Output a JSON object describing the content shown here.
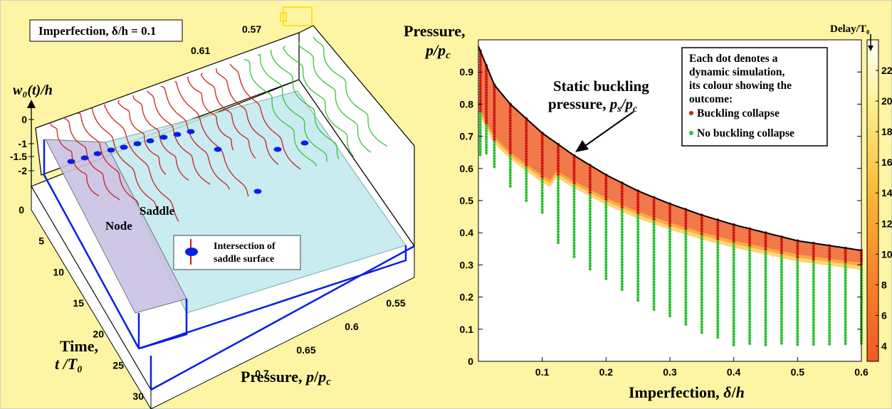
{
  "colors": {
    "background": "#fdf5a3",
    "buckling_collapse": "#cc1a14",
    "no_buckling_collapse": "#33c033",
    "saddle_surface": "#bfe9ee",
    "node_surface": "#c9c2e3",
    "static_curve": "#000000",
    "intersection_marker": "#0a1ee6",
    "box_edges": "#0a1ee6"
  },
  "chart_data": [
    {
      "type": "line",
      "panel": "left",
      "annotation_box": "Imperfection, δ/h = 0.1",
      "zlabel": "w₀(t)/h",
      "xlabel": "Pressure, p/p_c",
      "ylabel": "Time, t /T₀",
      "x_ticks": [
        "0.55",
        "0.6",
        "0.65",
        "0.7"
      ],
      "y_ticks": [
        "0",
        "5",
        "10",
        "15",
        "20",
        "25",
        "30"
      ],
      "z_ticks": [
        "0",
        "-1",
        "-1.5",
        "-2"
      ],
      "xlim": [
        0.72,
        0.54
      ],
      "ylim": [
        0,
        30
      ],
      "zlim": [
        -2,
        0
      ],
      "pressure_labels": [
        "0.61",
        "0.57"
      ],
      "region_labels": [
        "Node",
        "Saddle"
      ],
      "legend": {
        "marker_label_line1": "Intersection of",
        "marker_label_line2": "saddle surface"
      },
      "series": [
        {
          "name": "Buckling collapse",
          "pressures": [
            0.7,
            0.69,
            0.68,
            0.67,
            0.66,
            0.65,
            0.64,
            0.63,
            0.62,
            0.61,
            0.6,
            0.59,
            0.58,
            0.57
          ]
        },
        {
          "name": "No buckling collapse",
          "pressures": [
            0.56,
            0.555,
            0.55,
            0.545,
            0.54,
            0.535
          ]
        }
      ]
    },
    {
      "type": "scatter",
      "panel": "right",
      "xlabel": "Imperfection, δ/h",
      "ylabel": "Pressure,",
      "ylabel2": "p/p_c",
      "xlim": [
        0,
        0.6
      ],
      "ylim": [
        0,
        1.0
      ],
      "x_ticks": [
        "0.1",
        "0.2",
        "0.3",
        "0.4",
        "0.5",
        "0.6"
      ],
      "y_ticks": [
        "0",
        "0.1",
        "0.2",
        "0.3",
        "0.4",
        "0.5",
        "0.6",
        "0.7",
        "0.8",
        "0.9"
      ],
      "static_curve": {
        "label_line1": "Static buckling",
        "label_line2": "pressure, p_s/p_c",
        "x": [
          0.0,
          0.025,
          0.05,
          0.1,
          0.15,
          0.2,
          0.25,
          0.3,
          0.35,
          0.4,
          0.45,
          0.5,
          0.55,
          0.6
        ],
        "y": [
          0.98,
          0.86,
          0.8,
          0.71,
          0.64,
          0.58,
          0.53,
          0.49,
          0.455,
          0.425,
          0.4,
          0.375,
          0.36,
          0.345
        ]
      },
      "legend_text": [
        "Each dot denotes a",
        "dynamic simulation,",
        "its colour showing the",
        "outcome:"
      ],
      "legend_items": [
        {
          "label": "Buckling collapse",
          "color": "#cc1a14"
        },
        {
          "label": "No buckling collapse",
          "color": "#33c033"
        }
      ],
      "colorbar": {
        "title": "Delay/T₀",
        "range": [
          3,
          24
        ],
        "ticks": [
          "4",
          "6",
          "8",
          "10",
          "12",
          "14",
          "16",
          "18",
          "20",
          "22"
        ]
      }
    }
  ]
}
